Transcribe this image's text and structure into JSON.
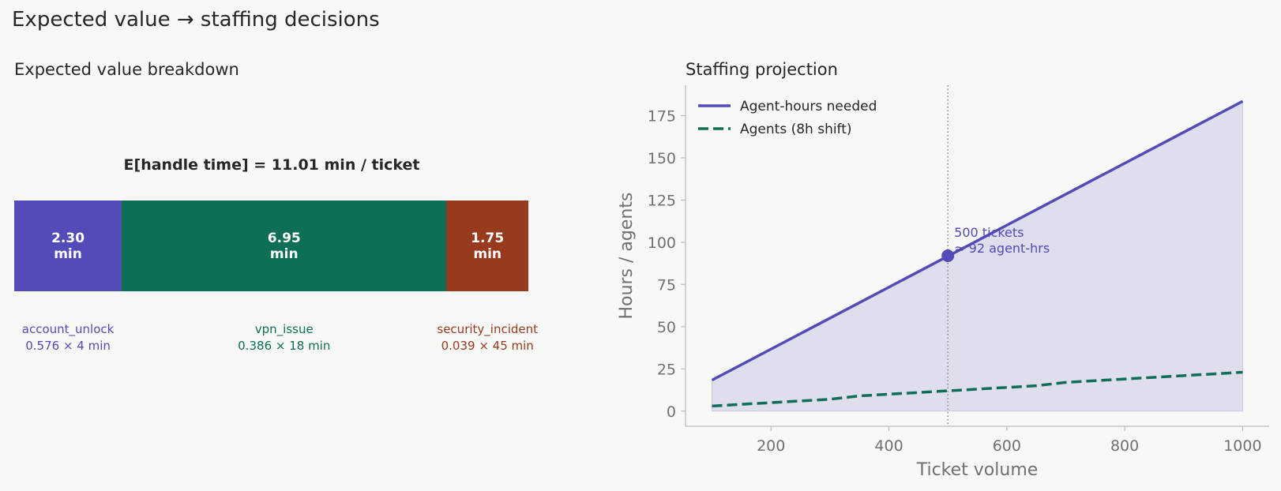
{
  "figure": {
    "title": "Expected value → staffing decisions"
  },
  "colors": {
    "purple": "#534bb8",
    "green": "#0f6e56",
    "red": "#973a1d",
    "fill": "#dfdeed",
    "axis": "#bdbdbd",
    "text": "#707070"
  },
  "chart_data": [
    {
      "type": "bar",
      "orientation": "horizontal-stacked",
      "title": "Expected value breakdown",
      "heading": "E[handle time] = 11.01 min / ticket",
      "segments": [
        {
          "name": "account_unlock",
          "value": 2.3,
          "value_label": "2.30",
          "unit": "min",
          "formula": "0.576 × 4 min",
          "color": "#534bb8"
        },
        {
          "name": "vpn_issue",
          "value": 6.95,
          "value_label": "6.95",
          "unit": "min",
          "formula": "0.386 × 18 min",
          "color": "#0f6e56"
        },
        {
          "name": "security_incident",
          "value": 1.75,
          "value_label": "1.75",
          "unit": "min",
          "formula": "0.039 × 45 min",
          "color": "#973a1d"
        }
      ]
    },
    {
      "type": "line",
      "title": "Staffing projection",
      "xlabel": "Ticket volume",
      "ylabel": "Hours / agents",
      "xlim": [
        55,
        1045
      ],
      "ylim": [
        -9,
        193
      ],
      "xticks": [
        200,
        400,
        600,
        800,
        1000
      ],
      "yticks": [
        0,
        25,
        50,
        75,
        100,
        125,
        150,
        175
      ],
      "legend_position": "top-left",
      "series": [
        {
          "name": "Agent-hours needed",
          "style": "solid",
          "color": "#534bb8",
          "filled": true,
          "x": [
            100,
            1000
          ],
          "y": [
            18.35,
            183.5
          ]
        },
        {
          "name": "Agents (8h shift)",
          "style": "dashed",
          "color": "#0f6e56",
          "x": [
            100,
            150,
            200,
            250,
            300,
            350,
            400,
            450,
            500,
            550,
            600,
            650,
            700,
            750,
            800,
            850,
            900,
            950,
            1000
          ],
          "y": [
            3,
            4,
            5,
            6,
            7,
            9,
            10,
            11,
            12,
            13,
            14,
            15,
            17,
            18,
            19,
            20,
            21,
            22,
            23
          ]
        }
      ],
      "annotation": {
        "x": 500,
        "y": 92,
        "line1": "500 tickets",
        "line2": "≈ 92 agent-hrs"
      }
    }
  ]
}
